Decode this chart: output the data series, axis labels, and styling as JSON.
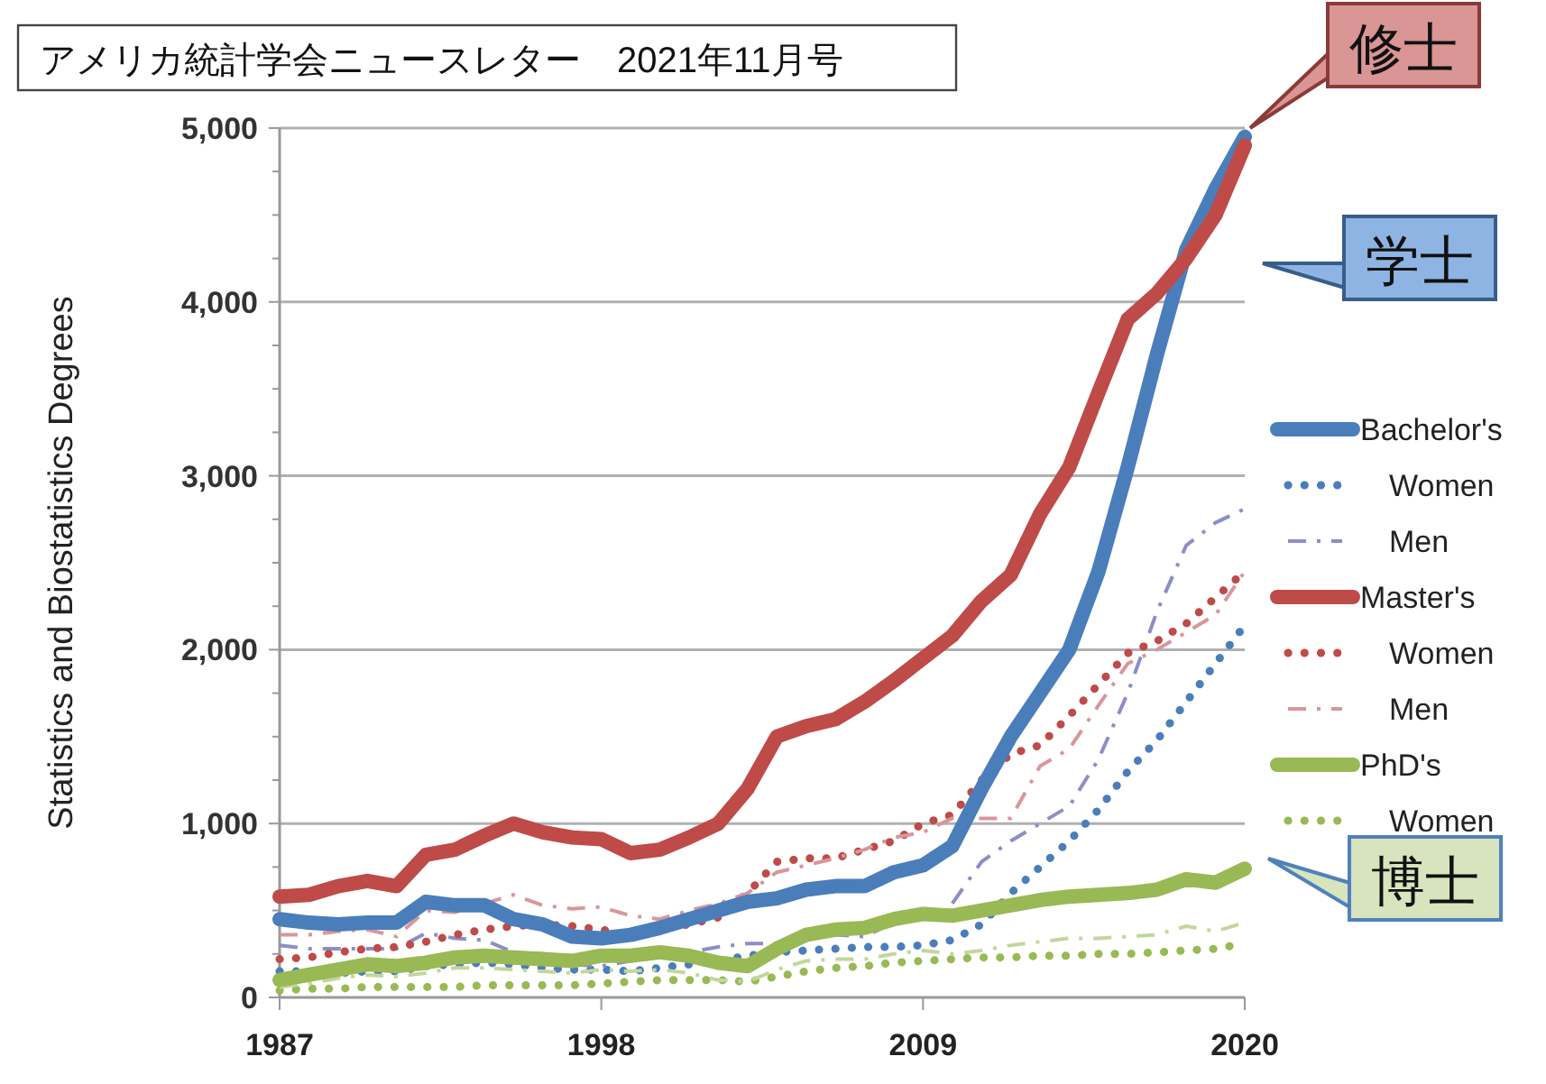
{
  "chart_data": {
    "type": "line",
    "ylabel": "Statistics and Biostatistics Degrees",
    "annotations": [
      "アメリカ統計学会ニュースレター　2021年11月号",
      "修士",
      "学士",
      "博士"
    ],
    "x": [
      1987,
      1988,
      1989,
      1990,
      1991,
      1992,
      1993,
      1994,
      1995,
      1996,
      1997,
      1998,
      1999,
      2000,
      2001,
      2002,
      2003,
      2004,
      2005,
      2006,
      2007,
      2008,
      2009,
      2010,
      2011,
      2012,
      2013,
      2014,
      2015,
      2016,
      2017,
      2018,
      2019,
      2020
    ],
    "series": [
      {
        "name": "Bachelor's",
        "color": "#4a7ebb",
        "line_style": "solid",
        "values": [
          450,
          430,
          420,
          430,
          430,
          550,
          530,
          530,
          450,
          420,
          350,
          340,
          360,
          400,
          450,
          500,
          550,
          570,
          620,
          640,
          640,
          720,
          760,
          870,
          1200,
          1500,
          1750,
          2000,
          2450,
          3050,
          3700,
          4300,
          4650,
          4950
        ]
      },
      {
        "name": "Women",
        "color": "#4a7ebb",
        "line_style": "dotted",
        "values": [
          150,
          150,
          140,
          150,
          150,
          180,
          190,
          200,
          190,
          170,
          160,
          160,
          150,
          170,
          190,
          210,
          240,
          260,
          270,
          280,
          290,
          290,
          300,
          330,
          420,
          600,
          750,
          900,
          1080,
          1300,
          1480,
          1700,
          1920,
          2140
        ]
      },
      {
        "name": "Men",
        "color": "#8b8ec8",
        "line_style": "dashdot",
        "values": [
          300,
          280,
          280,
          280,
          280,
          370,
          340,
          330,
          260,
          250,
          190,
          180,
          210,
          230,
          260,
          290,
          310,
          310,
          350,
          360,
          350,
          430,
          null,
          540,
          780,
          900,
          1000,
          1100,
          1370,
          1750,
          2220,
          2600,
          2730,
          2810
        ]
      },
      {
        "name": "Master's",
        "color": "#be4b48",
        "line_style": "solid",
        "values": [
          580,
          590,
          640,
          670,
          640,
          820,
          850,
          930,
          1000,
          950,
          920,
          910,
          830,
          850,
          920,
          1000,
          1200,
          1500,
          1560,
          1600,
          1700,
          1820,
          1950,
          2080,
          2280,
          2430,
          2780,
          3050,
          3480,
          3900,
          4050,
          4250,
          4500,
          4900
        ]
      },
      {
        "name": "Women",
        "color": "#be4b48",
        "line_style": "dotted",
        "values": [
          220,
          230,
          260,
          280,
          290,
          320,
          360,
          390,
          410,
          420,
          410,
          390,
          360,
          400,
          420,
          460,
          600,
          780,
          800,
          800,
          850,
          900,
          1000,
          1050,
          1250,
          1400,
          1450,
          1620,
          1800,
          1980,
          2050,
          2150,
          2300,
          2450
        ]
      },
      {
        "name": "Men",
        "color": "#d9969a",
        "line_style": "dashdot",
        "values": [
          360,
          360,
          380,
          390,
          350,
          500,
          490,
          540,
          590,
          530,
          510,
          520,
          470,
          450,
          500,
          540,
          600,
          720,
          760,
          800,
          850,
          920,
          950,
          1030,
          1030,
          1030,
          1330,
          1430,
          1680,
          1920,
          2000,
          2100,
          2200,
          2450
        ]
      },
      {
        "name": "PhD's",
        "color": "#98b954",
        "line_style": "solid",
        "values": [
          100,
          130,
          160,
          190,
          180,
          200,
          230,
          240,
          230,
          220,
          210,
          240,
          240,
          260,
          240,
          200,
          180,
          280,
          360,
          390,
          400,
          450,
          480,
          470,
          500,
          530,
          560,
          580,
          590,
          600,
          620,
          680,
          660,
          740
        ]
      },
      {
        "name": "Women",
        "color": "#98b954",
        "line_style": "dotted",
        "values": [
          40,
          50,
          50,
          60,
          60,
          60,
          60,
          70,
          70,
          70,
          70,
          80,
          90,
          100,
          100,
          100,
          90,
          120,
          150,
          170,
          180,
          200,
          210,
          220,
          230,
          230,
          240,
          240,
          250,
          250,
          260,
          270,
          280,
          310
        ]
      },
      {
        "color": "#c3d69b",
        "line_style": "dashdot",
        "values": [
          60,
          80,
          110,
          130,
          120,
          140,
          170,
          170,
          160,
          150,
          140,
          160,
          150,
          160,
          140,
          100,
          90,
          160,
          210,
          220,
          220,
          250,
          270,
          250,
          270,
          300,
          320,
          340,
          340,
          350,
          360,
          410,
          380,
          430
        ]
      }
    ],
    "xlim": [
      1987,
      2020
    ],
    "xticks": [
      1987,
      1998,
      2009,
      2020
    ],
    "ylim": [
      0,
      5000
    ],
    "yticks": [
      0,
      {
        "value": 250,
        "label": null
      },
      {
        "value": 500,
        "label": null
      },
      {
        "value": 750,
        "label": null
      },
      {
        "value": 1000,
        "label": "1,000"
      },
      {
        "value": 1250,
        "label": null
      },
      {
        "value": 1500,
        "label": null
      },
      {
        "value": 1750,
        "label": null
      },
      {
        "value": 2000,
        "label": "2,000"
      },
      {
        "value": 2250,
        "label": null
      },
      {
        "value": 2500,
        "label": null
      },
      {
        "value": 2750,
        "label": null
      },
      {
        "value": 3000,
        "label": "3,000"
      },
      {
        "value": 3250,
        "label": null
      },
      {
        "value": 3500,
        "label": null
      },
      {
        "value": 3750,
        "label": null
      },
      {
        "value": 4000,
        "label": "4,000"
      },
      {
        "value": 4250,
        "label": null
      },
      {
        "value": 4500,
        "label": null
      },
      {
        "value": 4750,
        "label": null
      },
      {
        "value": 5000,
        "label": "5,000"
      }
    ],
    "grid": "y",
    "legend": "right"
  }
}
